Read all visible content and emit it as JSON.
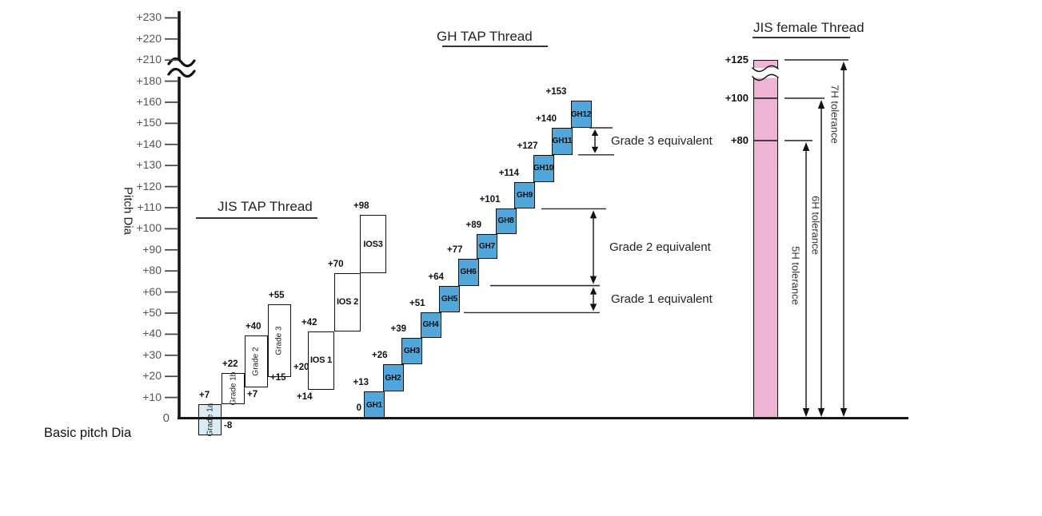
{
  "chart_data": {
    "type": "tolerance-zone step chart",
    "title": "",
    "ylabel": "Pitch Dia",
    "baseline_label": "Basic pitch Dia",
    "y_axis": {
      "zero_label": "0",
      "tick_labels": [
        "+10",
        "+20",
        "+30",
        "+40",
        "+50",
        "+60",
        "+80",
        "+90",
        "+100",
        "+110",
        "+120",
        "+130",
        "+140",
        "+150",
        "+160",
        "+180",
        "+210",
        "+220",
        "+230"
      ],
      "break_between": [
        "+180",
        "+210"
      ]
    },
    "jis_tap": {
      "title": "JIS TAP Thread",
      "grade_boxes": [
        {
          "name": "Grade 1a",
          "from": -8,
          "to": 7,
          "top_label": "+7",
          "bottom_label": "-8",
          "fill": "#d8ebf7"
        },
        {
          "name": "Grade 1b",
          "from": 7,
          "to": 22,
          "top_label": "+22",
          "bottom_label": "+7",
          "fill": "#ffffff"
        },
        {
          "name": "Grade 2",
          "from": 15,
          "to": 40,
          "top_label": "+40",
          "bottom_label": "+15",
          "fill": "#ffffff"
        },
        {
          "name": "Grade 3",
          "from": 20,
          "to": 55,
          "top_label": "+55",
          "bottom_label": "+20",
          "fill": "#ffffff"
        }
      ],
      "ios_boxes": [
        {
          "name": "IOS 1",
          "from": 14,
          "to": 42,
          "top_label": "+42",
          "bottom_label": "+14"
        },
        {
          "name": "IOS 2",
          "from": 42,
          "to": 70,
          "top_label": "+70",
          "bottom_label": ""
        },
        {
          "name": "IOS3",
          "from": 70,
          "to": 98,
          "top_label": "+98",
          "bottom_label": ""
        }
      ]
    },
    "gh_tap": {
      "title": "GH TAP Thread",
      "zero_label": "0",
      "boxes": [
        {
          "name": "GH1",
          "from": 0,
          "to": 13,
          "top_label": "+13"
        },
        {
          "name": "GH2",
          "from": 13,
          "to": 26,
          "top_label": "+26"
        },
        {
          "name": "GH3",
          "from": 26,
          "to": 39,
          "top_label": "+39"
        },
        {
          "name": "GH4",
          "from": 39,
          "to": 51,
          "top_label": "+51"
        },
        {
          "name": "GH5",
          "from": 51,
          "to": 64,
          "top_label": "+64"
        },
        {
          "name": "GH6",
          "from": 64,
          "to": 77,
          "top_label": "+77"
        },
        {
          "name": "GH7",
          "from": 77,
          "to": 89,
          "top_label": "+89"
        },
        {
          "name": "GH8",
          "from": 89,
          "to": 101,
          "top_label": "+101"
        },
        {
          "name": "GH9",
          "from": 101,
          "to": 114,
          "top_label": "+114"
        },
        {
          "name": "GH10",
          "from": 114,
          "to": 127,
          "top_label": "+127"
        },
        {
          "name": "GH11",
          "from": 127,
          "to": 140,
          "top_label": "+140"
        },
        {
          "name": "GH12",
          "from": 140,
          "to": 153,
          "top_label": "+153"
        }
      ]
    },
    "equivalents": [
      {
        "label": "Grade 1 equivalent",
        "from": 51,
        "to": 64
      },
      {
        "label": "Grade 2 equivalent",
        "from": 64,
        "to": 101
      },
      {
        "label": "Grade 3 equivalent",
        "from": 127,
        "to": 140
      }
    ],
    "jis_female": {
      "title": "JIS female Thread",
      "column_top_value": 125,
      "levels": [
        {
          "label": "+80",
          "value": 80
        },
        {
          "label": "+100",
          "value": 100
        },
        {
          "label": "+125",
          "value": 125
        }
      ],
      "tolerances": [
        {
          "label": "5H tolerance",
          "from": 0,
          "to": 80
        },
        {
          "label": "6H tolerance",
          "from": 0,
          "to": 100
        },
        {
          "label": "7H tolerance",
          "from": 0,
          "to": 125
        }
      ]
    },
    "colors": {
      "gh_box_fill": "#52a7da",
      "grade1a_fill": "#d8ebf7",
      "female_column_fill": "#efb3d4",
      "box_border": "#101010",
      "axis": "#161616",
      "tick_text": "#54545c",
      "label_text": "#111111"
    }
  }
}
